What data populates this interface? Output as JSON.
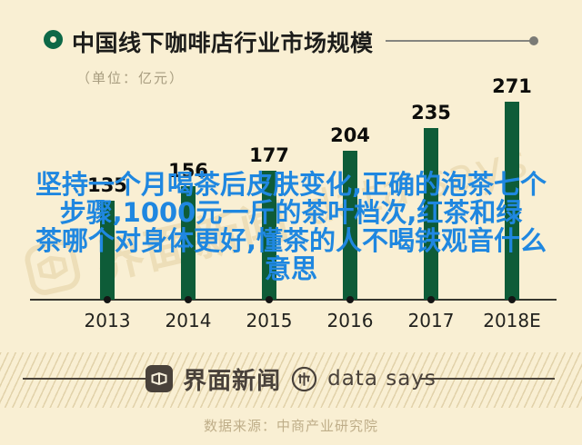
{
  "header": {
    "title": "中国线下咖啡店行业市场规模",
    "unit": "（单位：亿元）"
  },
  "chart_data": {
    "type": "bar",
    "title": "中国线下咖啡店行业市场规模",
    "unit": "亿元",
    "categories": [
      "2013",
      "2014",
      "2015",
      "2016",
      "2017",
      "2018E"
    ],
    "values": [
      135,
      156,
      177,
      204,
      235,
      271
    ],
    "xlabel": "",
    "ylabel": "",
    "ylim": [
      0,
      271
    ],
    "grid": false,
    "legend": "none",
    "bar_color": "#0e5c38",
    "value_labels_shown": true
  },
  "overlay": {
    "lines": [
      "坚持一个月喝茶后皮肤变化,正确的泡茶七个",
      "步骤,1000元一斤的茶叶档次,红茶和绿",
      "茶哪个对身体更好,懂茶的人不喝铁观音什么",
      "意思"
    ],
    "color": "#1f87e0"
  },
  "watermark": {
    "brand": "界面新闻",
    "slogan": "data says"
  },
  "footer": {
    "brand": "界面新闻",
    "slogan": "data says",
    "source": "数据来源：中商产业研究院"
  },
  "colors": {
    "background": "#f9efd3",
    "bar_green": "#0e5c38",
    "bullet_green": "#0d6847",
    "overlay_blue": "#1f87e0",
    "footer_dark": "#49413a",
    "muted_tan": "#a89d80",
    "source_tan": "#bfae89"
  }
}
